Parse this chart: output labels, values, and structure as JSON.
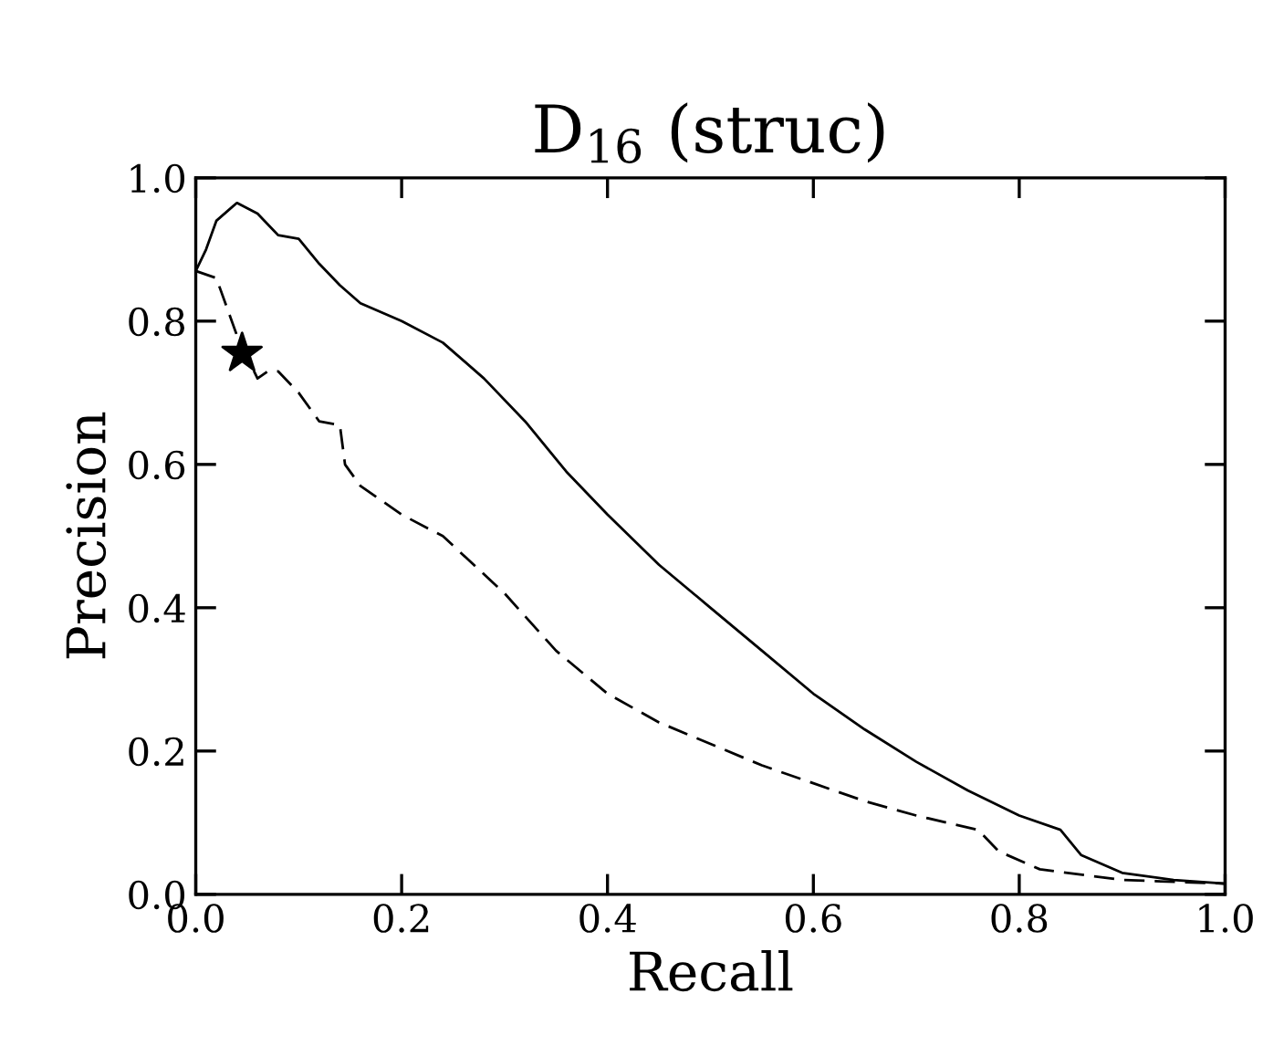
{
  "chart_data": {
    "type": "line",
    "title": "D$_{16}$ (struc)",
    "xlabel": "Recall",
    "ylabel": "Precision",
    "xlim": [
      0.0,
      1.0
    ],
    "ylim": [
      0.0,
      1.0
    ],
    "xticks": [
      {
        "value": 0,
        "label": "0.0"
      },
      0.2,
      0.4,
      0.6,
      0.8,
      {
        "value": 1,
        "label": "1.0"
      }
    ],
    "yticks": [
      {
        "value": 0,
        "label": "0.0"
      },
      0.2,
      0.4,
      0.6,
      0.8,
      {
        "value": 1,
        "label": "1.0"
      }
    ],
    "grid": false,
    "legend": false,
    "marker": "none",
    "series": [
      {
        "color": "#000000",
        "line_style": "solid",
        "x": [
          0,
          0.01,
          0.02,
          0.04,
          0.06,
          0.08,
          0.1,
          0.12,
          0.14,
          0.16,
          0.2,
          0.24,
          0.28,
          0.32,
          0.36,
          0.4,
          0.45,
          0.5,
          0.55,
          0.6,
          0.65,
          0.7,
          0.75,
          0.8,
          0.84,
          0.86,
          0.9,
          0.95,
          1.0
        ],
        "values": [
          0.87,
          0.9,
          0.94,
          0.965,
          0.95,
          0.92,
          0.915,
          0.88,
          0.85,
          0.825,
          0.8,
          0.77,
          0.72,
          0.66,
          0.59,
          0.53,
          0.46,
          0.4,
          0.34,
          0.28,
          0.23,
          0.185,
          0.145,
          0.11,
          0.09,
          0.055,
          0.03,
          0.02,
          0.015
        ]
      },
      {
        "color": "#000000",
        "line_style": "dashed",
        "x": [
          0,
          0.02,
          0.04,
          0.06,
          0.07,
          0.08,
          0.1,
          0.12,
          0.14,
          0.145,
          0.16,
          0.2,
          0.24,
          0.3,
          0.35,
          0.4,
          0.45,
          0.5,
          0.55,
          0.6,
          0.65,
          0.7,
          0.76,
          0.78,
          0.82,
          0.9,
          1.0
        ],
        "values": [
          0.87,
          0.86,
          0.78,
          0.72,
          0.73,
          0.73,
          0.7,
          0.66,
          0.655,
          0.6,
          0.57,
          0.53,
          0.5,
          0.42,
          0.34,
          0.28,
          0.24,
          0.21,
          0.18,
          0.155,
          0.13,
          0.11,
          0.09,
          0.06,
          0.035,
          0.02,
          0.015
        ]
      },
      {
        "type": "scatter",
        "color": "#000000",
        "marker": "star",
        "x": [
          0.045
        ],
        "values": [
          0.755
        ]
      }
    ]
  }
}
